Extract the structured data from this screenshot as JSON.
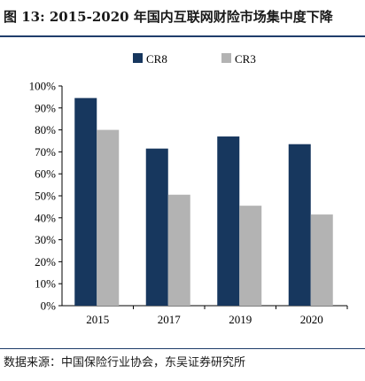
{
  "title": "图 13:  2015-2020 年国内互联网财险市场集中度下降",
  "source": "数据来源：中国保险行业协会，东吴证券研究所",
  "colors": {
    "cr8": "#17375e",
    "cr3": "#b3b3b3",
    "accent": "#1f3d6b"
  },
  "chart_data": {
    "type": "bar",
    "title": "2015-2020 年国内互联网财险市场集中度下降",
    "categories": [
      "2015",
      "2017",
      "2019",
      "2020"
    ],
    "series": [
      {
        "name": "CR8",
        "values": [
          94.5,
          71.5,
          77.0,
          73.5
        ]
      },
      {
        "name": "CR3",
        "values": [
          80.0,
          50.5,
          45.5,
          41.5
        ]
      }
    ],
    "ylim": [
      0,
      100
    ],
    "yticks": [
      "0%",
      "10%",
      "20%",
      "30%",
      "40%",
      "50%",
      "60%",
      "70%",
      "80%",
      "90%",
      "100%"
    ],
    "legend": "top",
    "grid": false,
    "xlabel": "",
    "ylabel": ""
  }
}
